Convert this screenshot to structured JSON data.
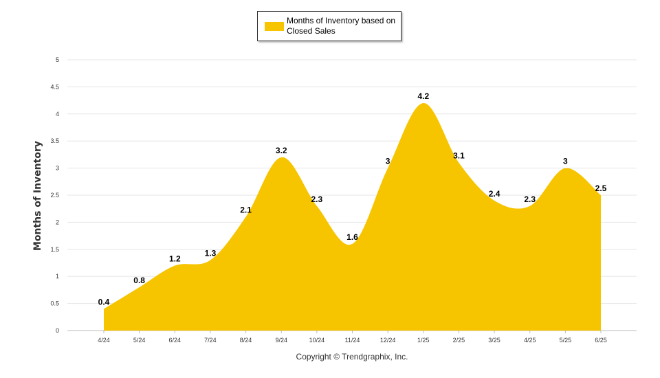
{
  "chart_data": {
    "type": "area",
    "categories": [
      "4/24",
      "5/24",
      "6/24",
      "7/24",
      "8/24",
      "9/24",
      "10/24",
      "11/24",
      "12/24",
      "1/25",
      "2/25",
      "3/25",
      "4/25",
      "5/25",
      "6/25"
    ],
    "series": [
      {
        "name": "Months of Inventory based on Closed Sales",
        "values": [
          0.4,
          0.8,
          1.2,
          1.3,
          2.1,
          3.2,
          2.3,
          1.6,
          3,
          4.2,
          3.1,
          2.4,
          2.3,
          3,
          2.5
        ],
        "labels": [
          "0.4",
          "0.8",
          "1.2",
          "1.3",
          "2.1",
          "3.2",
          "2.3",
          "1.6",
          "3",
          "4.2",
          "3.1",
          "2.4",
          "2.3",
          "3",
          "2.5"
        ],
        "color": "#f7c400"
      }
    ],
    "ylabel": "Months of Inventory",
    "ylim": [
      0,
      5
    ],
    "yticks": [
      "0",
      "0.5",
      "1",
      "1.5",
      "2",
      "2.5",
      "3",
      "3.5",
      "4",
      "4.5",
      "5"
    ],
    "grid": true,
    "legend_position": "top-center"
  },
  "credit": "Copyright © Trendgraphix, Inc."
}
